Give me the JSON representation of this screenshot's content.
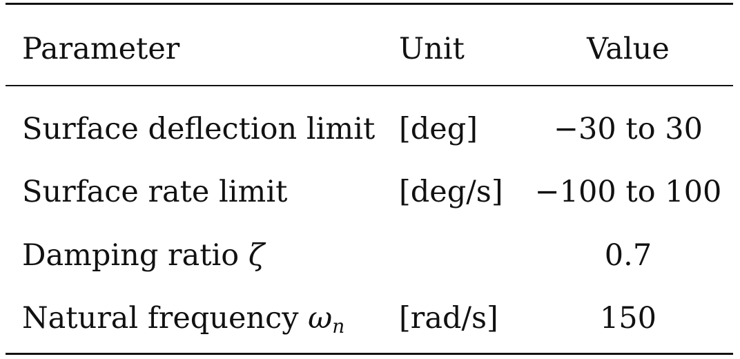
{
  "table": {
    "headers": {
      "parameter": "Parameter",
      "unit": "Unit",
      "value": "Value"
    },
    "rows": [
      {
        "parameter": "Surface deflection limit",
        "symbol": "",
        "symbol_sub": "",
        "unit": "[deg]",
        "value": "−30 to 30"
      },
      {
        "parameter": "Surface rate limit",
        "symbol": "",
        "symbol_sub": "",
        "unit": "[deg/s]",
        "value": "−100 to 100"
      },
      {
        "parameter": "Damping ratio ",
        "symbol": "ζ",
        "symbol_sub": "",
        "unit": "",
        "value": "0.7"
      },
      {
        "parameter": "Natural frequency ",
        "symbol": "ω",
        "symbol_sub": "n",
        "unit": "[rad/s]",
        "value": "150"
      }
    ]
  }
}
